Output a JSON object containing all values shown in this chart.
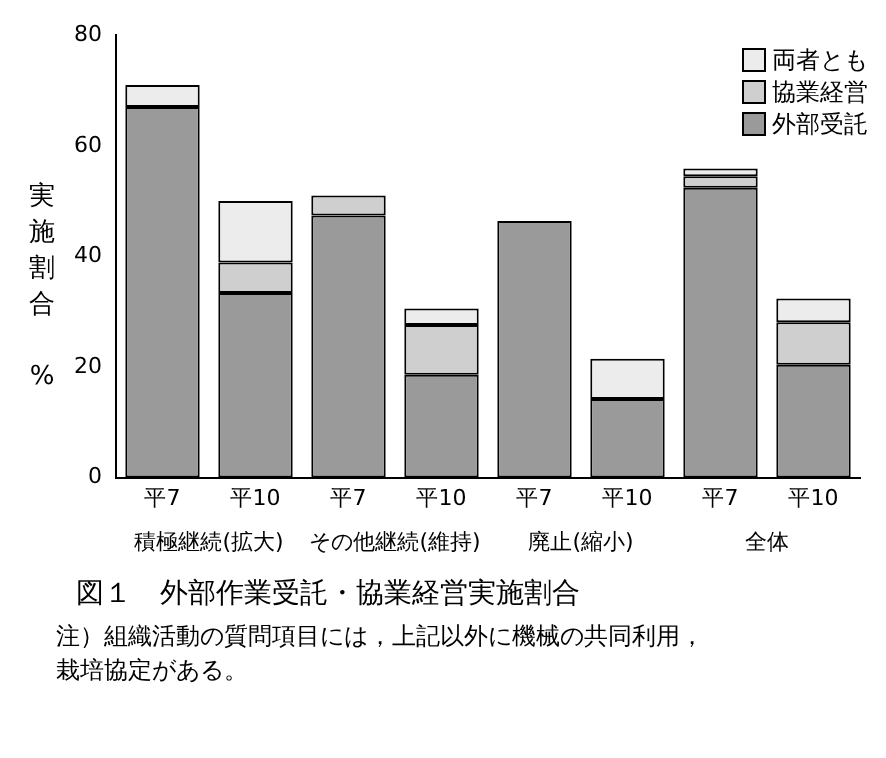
{
  "chart_data": {
    "type": "bar",
    "stacked": true,
    "title": "図１　外部作業受託・協業経営実施割合",
    "ylabel": "実施割合 %",
    "categories": [
      "平7",
      "平10",
      "平7",
      "平10",
      "平7",
      "平10",
      "平7",
      "平10"
    ],
    "series": [
      {
        "name": "外部受託",
        "color": "#9a9a9a",
        "values": [
          67,
          33.4,
          47.4,
          18.6,
          46.4,
          14.2,
          52.4,
          20.4
        ]
      },
      {
        "name": "協業経営",
        "color": "#cfcfcf",
        "values": [
          0,
          5.5,
          3.6,
          9,
          0,
          0,
          2.1,
          7.7
        ]
      },
      {
        "name": "両者とも",
        "color": "#ececec",
        "values": [
          4,
          11.1,
          0,
          3,
          0,
          7.3,
          1.4,
          4.3
        ]
      }
    ],
    "annotations": [
      "積極継続(拡大)",
      "その他継続(維持)",
      "廃止(縮小)",
      "全体",
      "注）組織活動の質問項目には，上記以外に機械の共同利用，栽培協定がある。"
    ],
    "ylim": [
      0,
      80
    ],
    "yticks": [
      0,
      20,
      40,
      60,
      80
    ],
    "grid": false,
    "legend": "top right"
  }
}
